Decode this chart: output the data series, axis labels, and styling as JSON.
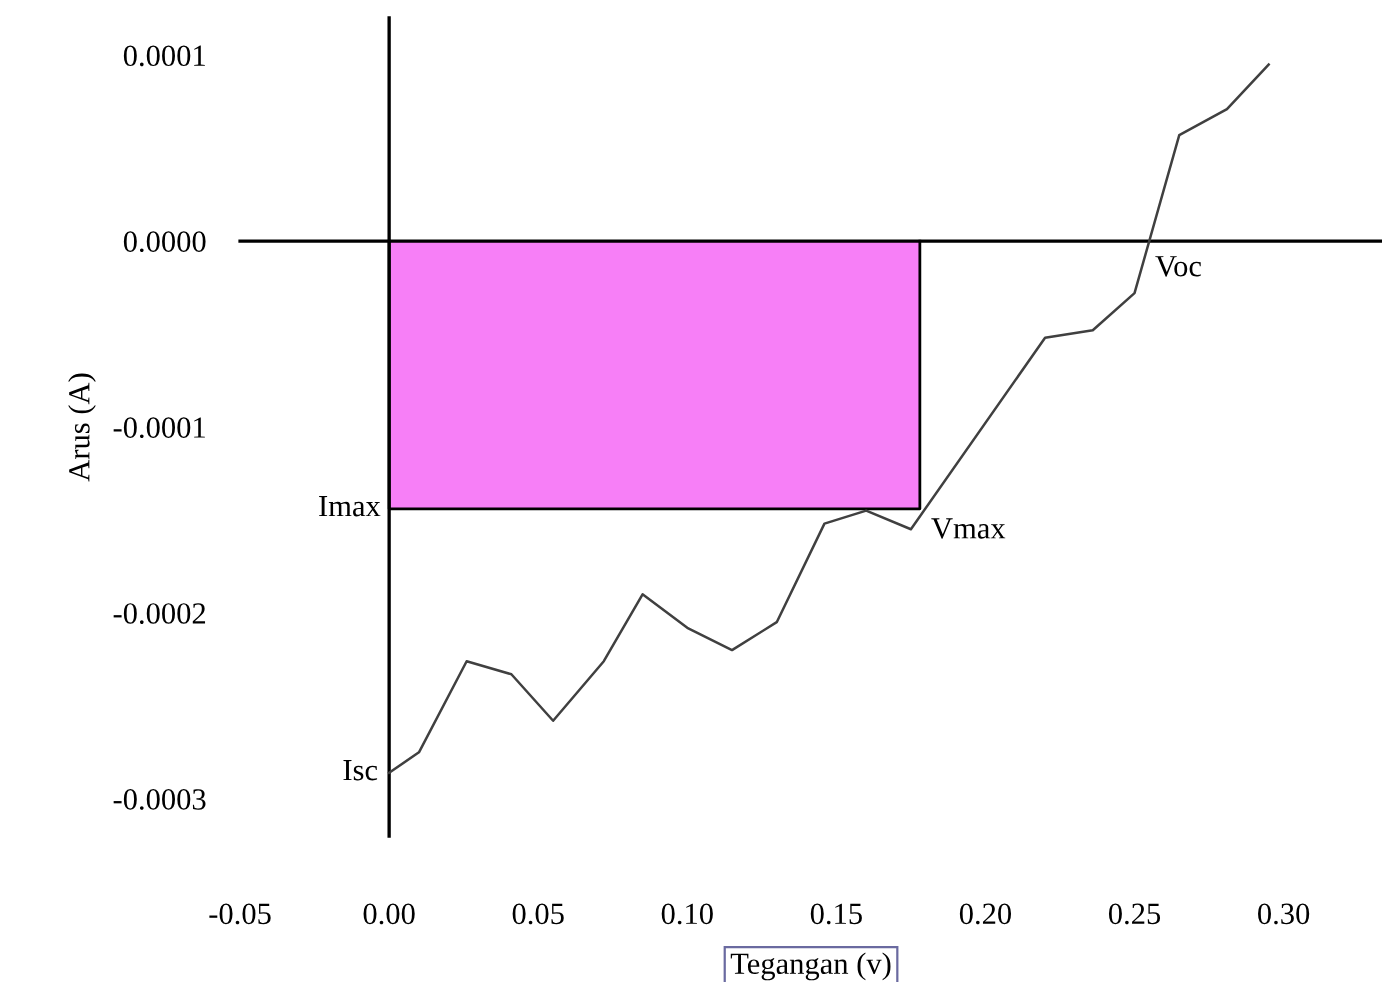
{
  "chart_data": {
    "type": "line",
    "xlabel": "Tegangan (v)",
    "ylabel": "Arus (A)",
    "series": [
      {
        "type": "area",
        "color": "#f77ff7",
        "x": [
          0,
          0.178
        ],
        "values": [
          -0.000144,
          -0.000144
        ]
      },
      {
        "color": "#404040",
        "x": [
          0,
          0.01,
          0.026,
          0.041,
          0.055,
          0.072,
          0.085,
          0.1,
          0.115,
          0.13,
          0.146,
          0.16,
          0.175,
          0.22,
          0.236,
          0.25,
          0.265,
          0.281,
          0.295
        ],
        "values": [
          -0.000286,
          -0.000275,
          -0.000226,
          -0.000233,
          -0.000258,
          -0.000226,
          -0.00019,
          -0.000208,
          -0.00022,
          -0.000205,
          -0.000152,
          -0.000145,
          -0.000155,
          -5.2e-05,
          -4.8e-05,
          -2.8e-05,
          5.7e-05,
          7.1e-05,
          9.5e-05
        ]
      }
    ],
    "xlim": [
      -0.05,
      0.333
    ],
    "ylim": [
      -0.00032,
      0.00012
    ],
    "xticks": [
      {
        "value": -0.05,
        "label": "-0.05"
      },
      {
        "value": 0,
        "label": "0.00"
      },
      {
        "value": 0.05,
        "label": "0.05"
      },
      {
        "value": 0.1,
        "label": "0.10"
      },
      {
        "value": 0.15,
        "label": "0.15"
      },
      {
        "value": 0.2,
        "label": "0.20"
      },
      {
        "value": 0.25,
        "label": "0.25"
      },
      {
        "value": 0.3,
        "label": "0.30"
      }
    ],
    "yticks": [
      {
        "value": 0.0001,
        "label": "0.0001"
      },
      {
        "value": 0,
        "label": "0.0000"
      },
      {
        "value": -0.0001,
        "label": "-0.0001"
      },
      {
        "value": -0.0002,
        "label": "-0.0002"
      },
      {
        "value": -0.0003,
        "label": "-0.0003"
      }
    ],
    "annotations": [
      {
        "text": "Imax",
        "x": 0,
        "y": -0.000144
      },
      {
        "text": "Vmax",
        "x": 0.178,
        "y": -0.000144
      },
      {
        "text": "Isc",
        "x": 0,
        "y": -0.000286
      },
      {
        "text": "Voc",
        "x": 0.255,
        "y": 0
      }
    ],
    "legend": false,
    "marker": "none",
    "line_style": "solid"
  }
}
